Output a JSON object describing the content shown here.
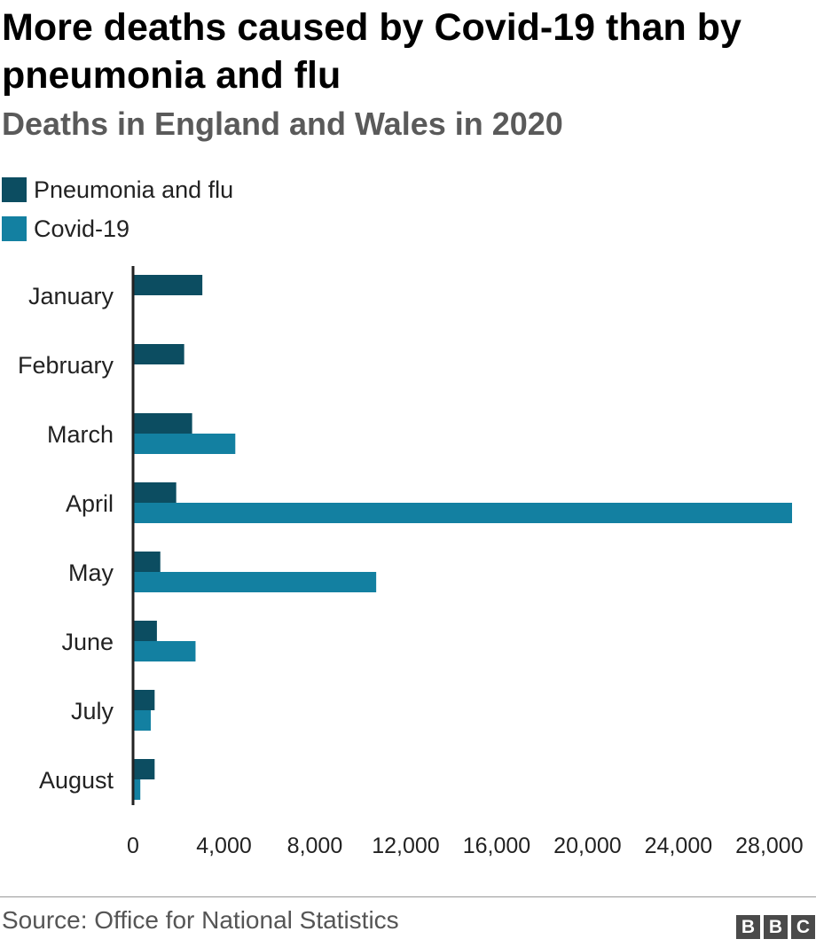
{
  "chart_data": {
    "type": "bar",
    "orientation": "horizontal",
    "title": "More deaths caused by Covid-19 than by pneumonia and flu",
    "subtitle": "Deaths in England and Wales in 2020",
    "categories": [
      "January",
      "February",
      "March",
      "April",
      "May",
      "June",
      "July",
      "August"
    ],
    "series": [
      {
        "name": "Pneumonia and flu",
        "color": "#0c4d61",
        "values": [
          3050,
          2250,
          2600,
          1900,
          1200,
          1050,
          950,
          950
        ]
      },
      {
        "name": "Covid-19",
        "color": "#1380a1",
        "values": [
          0,
          0,
          4500,
          29000,
          10700,
          2750,
          780,
          320
        ]
      }
    ],
    "xlim": [
      0,
      29000
    ],
    "xticks": [
      0,
      4000,
      8000,
      12000,
      16000,
      20000,
      24000,
      28000
    ],
    "xtick_labels": [
      "0",
      "4,000",
      "8,000",
      "12,000",
      "16,000",
      "20,000",
      "24,000",
      "28,000"
    ],
    "legend_position": "top-left",
    "grid": false
  },
  "footer": {
    "source": "Source: Office for National Statistics",
    "logo_letters": [
      "B",
      "B",
      "C"
    ]
  }
}
